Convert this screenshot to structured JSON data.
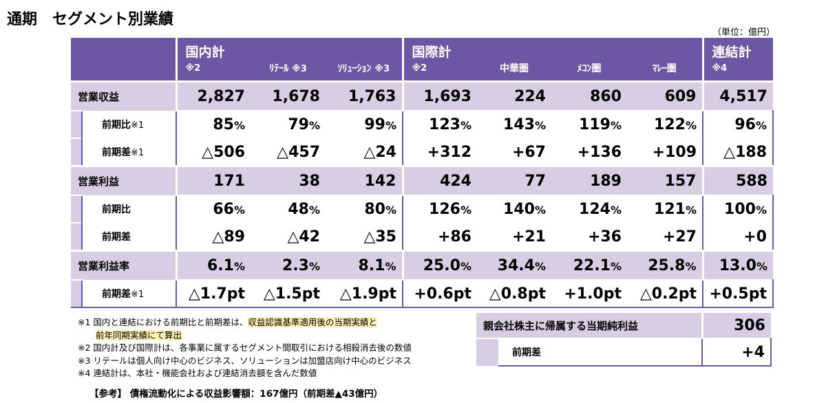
{
  "title": "通期　セグメント別業績",
  "unit": "（単位：億円）",
  "header": {
    "domestic": {
      "label": "国内計",
      "note": "※2"
    },
    "retail": {
      "label": "ﾘﾃｰﾙ",
      "note": "※3"
    },
    "solution": {
      "label": "ｿﾘｭｰｼｮﾝ",
      "note": "※3"
    },
    "intl": {
      "label": "国際計",
      "note": "※2"
    },
    "china": {
      "label": "中華圏"
    },
    "mekong": {
      "label": "ﾒｺﾝ圏"
    },
    "malay": {
      "label": "ﾏﾚｰ圏"
    },
    "consol": {
      "label": "連結計",
      "note": "※4"
    }
  },
  "rows": [
    {
      "label": "営業収益",
      "note": "",
      "type": "main",
      "values": [
        "2,827",
        "1,678",
        "1,763",
        "1,693",
        "224",
        "860",
        "609",
        "4,517"
      ],
      "suffix": ""
    },
    {
      "label": "前期比",
      "note": "※1",
      "type": "sub",
      "values": [
        "85",
        "79",
        "99",
        "123",
        "143",
        "119",
        "122",
        "96"
      ],
      "suffix": "%"
    },
    {
      "label": "前期差",
      "note": "※1",
      "type": "sub",
      "values": [
        "△506",
        "△457",
        "△24",
        "+312",
        "+67",
        "+136",
        "+109",
        "△188"
      ],
      "suffix": ""
    },
    {
      "label": "営業利益",
      "note": "",
      "type": "main",
      "values": [
        "171",
        "38",
        "142",
        "424",
        "77",
        "189",
        "157",
        "588"
      ],
      "suffix": ""
    },
    {
      "label": "前期比",
      "note": "",
      "type": "sub",
      "values": [
        "66",
        "48",
        "80",
        "126",
        "140",
        "124",
        "121",
        "100"
      ],
      "suffix": "%"
    },
    {
      "label": "前期差",
      "note": "",
      "type": "sub",
      "values": [
        "△89",
        "△42",
        "△35",
        "+86",
        "+21",
        "+36",
        "+27",
        "+0"
      ],
      "suffix": ""
    },
    {
      "label": "営業利益率",
      "note": "",
      "type": "main",
      "values": [
        "6.1",
        "2.3",
        "8.1",
        "25.0",
        "34.4",
        "22.1",
        "25.8",
        "13.0"
      ],
      "suffix": "%"
    },
    {
      "label": "前期差",
      "note": "※1",
      "type": "sub",
      "values": [
        "△1.7pt",
        "△1.5pt",
        "△1.9pt",
        "+0.6pt",
        "△0.8pt",
        "+1.0pt",
        "△0.2pt",
        "+0.5pt"
      ],
      "suffix": ""
    }
  ],
  "notes": {
    "n1_a": "※1 国内と連結における前期比と前期差は、",
    "n1_hl": "収益認識基準適用後の当期実績と",
    "n1_b": "前年同期実績にて算出",
    "n2": "※2 国内計及び国際計は、各事業に属するセグメント間取引における相殺消去後の数値",
    "n3": "※3 リテールは個人向け中心のビジネス、ソリューションは加盟店向け中心のビジネス",
    "n4": "※4 連結計は、本社・機能会社および連結消去額を含んだ数値"
  },
  "reference": "【参考】 債権流動化による収益影響額：167億円（前期差▲43億円）",
  "net_income": {
    "label": "親会社株主に帰属する当期純利益",
    "value": "306",
    "diff_label": "前期差",
    "diff_value": "+4"
  }
}
